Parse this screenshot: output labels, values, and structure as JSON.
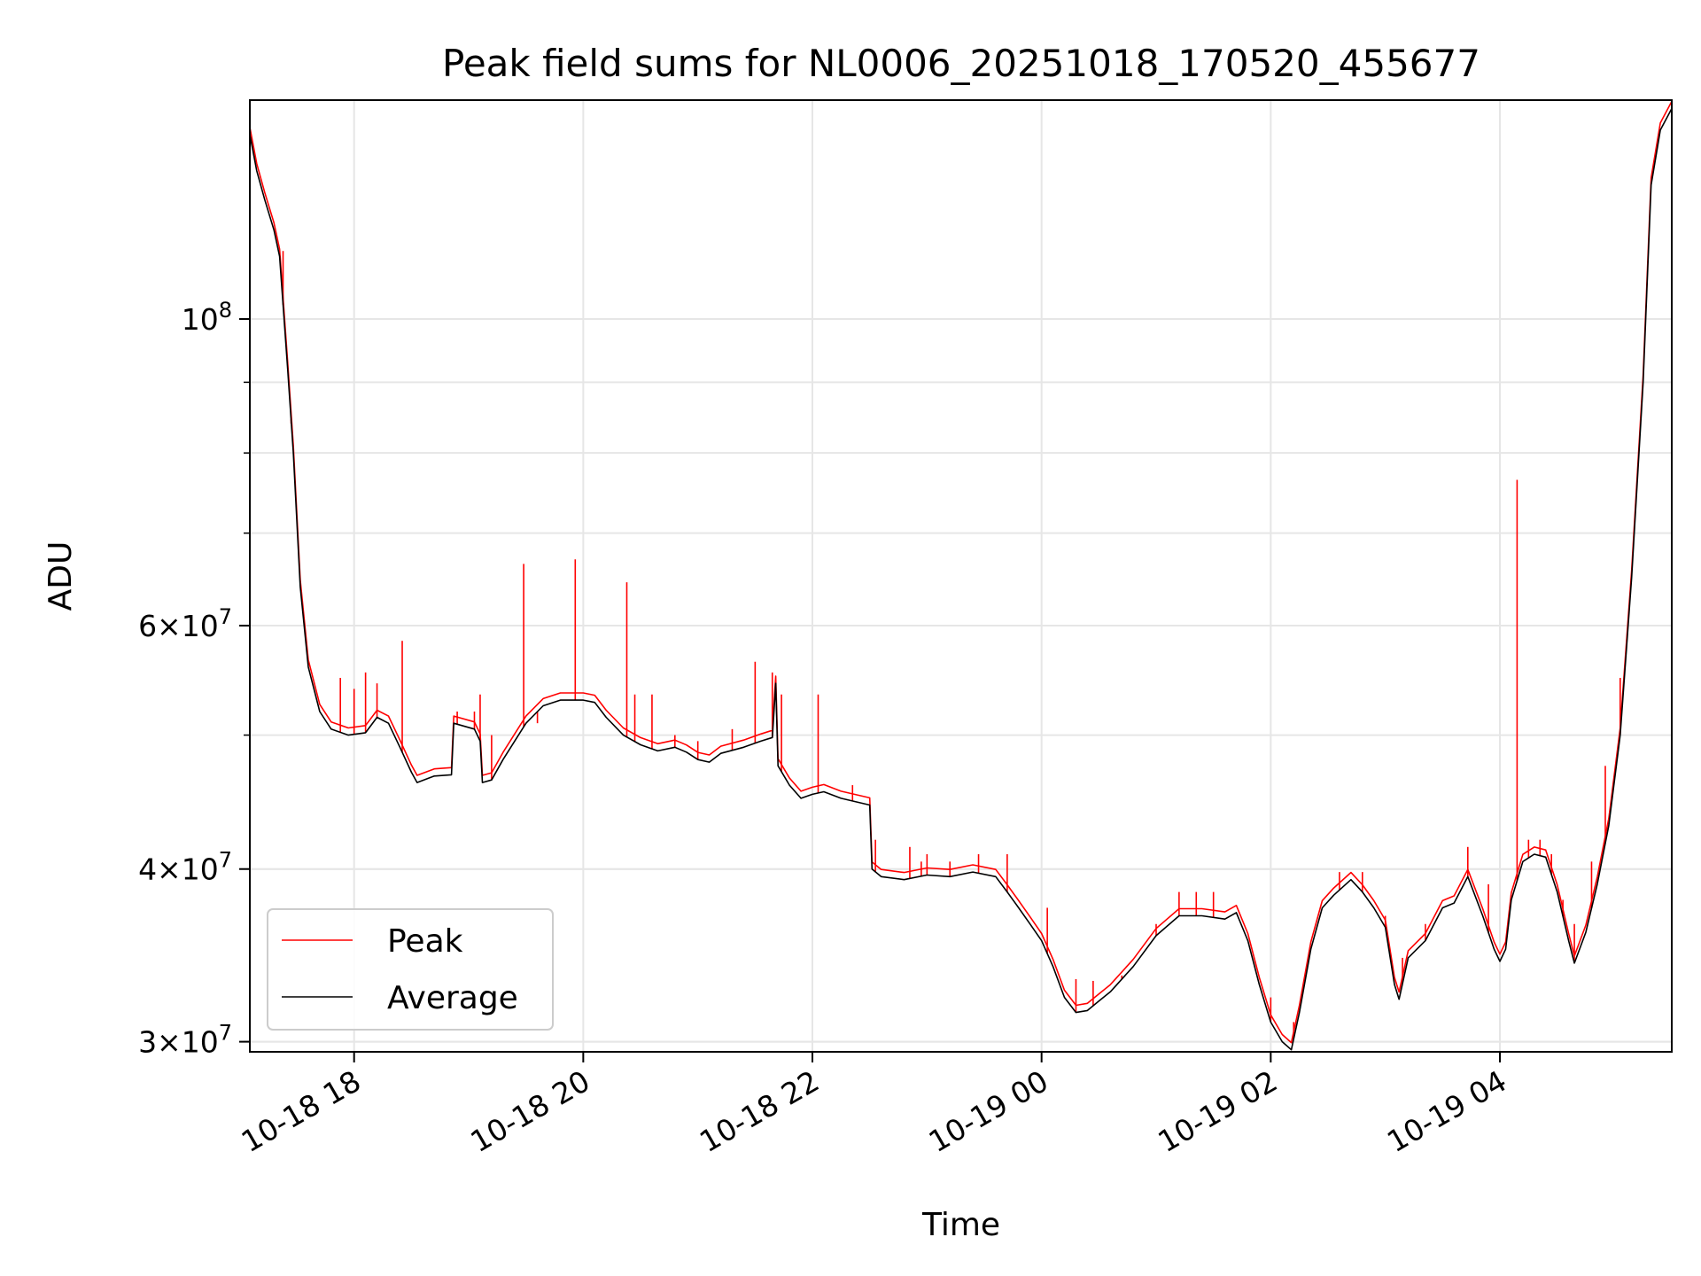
{
  "chart_data": {
    "type": "line",
    "title": "Peak field sums for NL0006_20251018_170520_455677",
    "xlabel": "Time",
    "ylabel": "ADU",
    "yscale": "log",
    "grid": true,
    "legend_position": "lower-left",
    "x_unit": "hours since 2025-10-18 00:00",
    "xlim": [
      17.09,
      29.5
    ],
    "ylim": [
      29500000,
      144000000
    ],
    "x_ticks": [
      {
        "value": 18,
        "label": "10-18 18"
      },
      {
        "value": 20,
        "label": "10-18 20"
      },
      {
        "value": 22,
        "label": "10-18 22"
      },
      {
        "value": 24,
        "label": "10-19 00"
      },
      {
        "value": 26,
        "label": "10-19 02"
      },
      {
        "value": 28,
        "label": "10-19 04"
      }
    ],
    "y_major_ticks": [
      {
        "value": 100000000,
        "base": "10",
        "exp": "8",
        "mantissa": ""
      },
      {
        "value": 60000000,
        "base": "10",
        "exp": "7",
        "mantissa": "6×"
      },
      {
        "value": 40000000,
        "base": "10",
        "exp": "7",
        "mantissa": "4×"
      },
      {
        "value": 30000000,
        "base": "10",
        "exp": "7",
        "mantissa": "3×"
      }
    ],
    "y_minor_ticks": [
      30000000,
      40000000,
      50000000,
      60000000,
      70000000,
      80000000,
      90000000
    ],
    "series": [
      {
        "name": "Average",
        "color": "#000000",
        "points": [
          [
            17.09,
            136000000
          ],
          [
            17.15,
            128000000
          ],
          [
            17.22,
            122000000
          ],
          [
            17.3,
            116000000
          ],
          [
            17.35,
            111000000
          ],
          [
            17.42,
            92000000
          ],
          [
            17.47,
            80000000
          ],
          [
            17.53,
            64000000
          ],
          [
            17.6,
            56000000
          ],
          [
            17.7,
            52000000
          ],
          [
            17.8,
            50500000
          ],
          [
            17.95,
            50000000
          ],
          [
            18.1,
            50200000
          ],
          [
            18.2,
            51500000
          ],
          [
            18.3,
            51000000
          ],
          [
            18.4,
            49000000
          ],
          [
            18.5,
            47000000
          ],
          [
            18.55,
            46200000
          ],
          [
            18.7,
            46700000
          ],
          [
            18.85,
            46800000
          ],
          [
            18.87,
            51000000
          ],
          [
            19.05,
            50500000
          ],
          [
            19.1,
            49500000
          ],
          [
            19.12,
            46200000
          ],
          [
            19.2,
            46400000
          ],
          [
            19.3,
            48000000
          ],
          [
            19.5,
            51000000
          ],
          [
            19.65,
            52500000
          ],
          [
            19.8,
            53000000
          ],
          [
            20.0,
            53000000
          ],
          [
            20.1,
            52800000
          ],
          [
            20.2,
            51500000
          ],
          [
            20.35,
            50000000
          ],
          [
            20.5,
            49200000
          ],
          [
            20.65,
            48700000
          ],
          [
            20.8,
            49000000
          ],
          [
            20.9,
            48600000
          ],
          [
            21.0,
            48000000
          ],
          [
            21.1,
            47800000
          ],
          [
            21.2,
            48500000
          ],
          [
            21.4,
            49000000
          ],
          [
            21.55,
            49500000
          ],
          [
            21.65,
            49800000
          ],
          [
            21.68,
            54500000
          ],
          [
            21.7,
            47500000
          ],
          [
            21.8,
            46000000
          ],
          [
            21.9,
            45000000
          ],
          [
            22.0,
            45300000
          ],
          [
            22.1,
            45500000
          ],
          [
            22.25,
            45000000
          ],
          [
            22.5,
            44500000
          ],
          [
            22.52,
            40000000
          ],
          [
            22.6,
            39500000
          ],
          [
            22.8,
            39300000
          ],
          [
            23.0,
            39600000
          ],
          [
            23.2,
            39500000
          ],
          [
            23.4,
            39800000
          ],
          [
            23.6,
            39500000
          ],
          [
            23.7,
            38500000
          ],
          [
            23.8,
            37500000
          ],
          [
            23.9,
            36500000
          ],
          [
            24.0,
            35500000
          ],
          [
            24.1,
            34000000
          ],
          [
            24.2,
            32300000
          ],
          [
            24.3,
            31500000
          ],
          [
            24.4,
            31600000
          ],
          [
            24.5,
            32100000
          ],
          [
            24.6,
            32600000
          ],
          [
            24.8,
            34000000
          ],
          [
            25.0,
            35800000
          ],
          [
            25.2,
            37000000
          ],
          [
            25.4,
            37000000
          ],
          [
            25.6,
            36800000
          ],
          [
            25.7,
            37200000
          ],
          [
            25.8,
            35500000
          ],
          [
            25.9,
            33000000
          ],
          [
            26.0,
            31000000
          ],
          [
            26.1,
            30000000
          ],
          [
            26.18,
            29600000
          ],
          [
            26.25,
            31500000
          ],
          [
            26.35,
            35000000
          ],
          [
            26.45,
            37500000
          ],
          [
            26.55,
            38300000
          ],
          [
            26.7,
            39300000
          ],
          [
            26.8,
            38500000
          ],
          [
            26.9,
            37500000
          ],
          [
            27.0,
            36300000
          ],
          [
            27.08,
            33000000
          ],
          [
            27.12,
            32200000
          ],
          [
            27.2,
            34500000
          ],
          [
            27.35,
            35500000
          ],
          [
            27.5,
            37500000
          ],
          [
            27.6,
            37800000
          ],
          [
            27.72,
            39500000
          ],
          [
            27.85,
            37000000
          ],
          [
            27.95,
            35000000
          ],
          [
            28.0,
            34300000
          ],
          [
            28.05,
            35000000
          ],
          [
            28.1,
            38000000
          ],
          [
            28.2,
            40500000
          ],
          [
            28.3,
            41000000
          ],
          [
            28.4,
            40800000
          ],
          [
            28.5,
            38500000
          ],
          [
            28.6,
            35500000
          ],
          [
            28.65,
            34200000
          ],
          [
            28.75,
            36000000
          ],
          [
            28.85,
            39000000
          ],
          [
            28.95,
            43000000
          ],
          [
            29.05,
            50000000
          ],
          [
            29.15,
            65000000
          ],
          [
            29.25,
            90000000
          ],
          [
            29.32,
            125000000
          ],
          [
            29.4,
            137000000
          ],
          [
            29.5,
            142000000
          ]
        ]
      },
      {
        "name": "Peak",
        "color": "#ff0000",
        "spikes": [
          [
            17.38,
            112000000
          ],
          [
            17.45,
            84000000
          ],
          [
            17.88,
            55000000
          ],
          [
            18.0,
            54000000
          ],
          [
            18.1,
            55500000
          ],
          [
            18.2,
            54500000
          ],
          [
            18.42,
            58500000
          ],
          [
            18.9,
            52000000
          ],
          [
            19.05,
            52000000
          ],
          [
            19.1,
            53500000
          ],
          [
            19.2,
            50000000
          ],
          [
            19.48,
            66500000
          ],
          [
            19.6,
            51000000
          ],
          [
            19.93,
            67000000
          ],
          [
            20.38,
            64500000
          ],
          [
            20.45,
            53500000
          ],
          [
            20.6,
            53500000
          ],
          [
            20.8,
            50000000
          ],
          [
            21.0,
            49500000
          ],
          [
            21.3,
            50500000
          ],
          [
            21.5,
            56500000
          ],
          [
            21.65,
            55500000
          ],
          [
            21.73,
            53500000
          ],
          [
            22.05,
            53500000
          ],
          [
            22.35,
            46000000
          ],
          [
            22.55,
            42000000
          ],
          [
            22.85,
            41500000
          ],
          [
            22.95,
            40500000
          ],
          [
            23.0,
            41000000
          ],
          [
            23.2,
            40500000
          ],
          [
            23.45,
            41000000
          ],
          [
            23.7,
            41000000
          ],
          [
            24.05,
            37500000
          ],
          [
            24.3,
            33300000
          ],
          [
            24.45,
            33200000
          ],
          [
            24.7,
            33500000
          ],
          [
            25.0,
            36500000
          ],
          [
            25.2,
            38500000
          ],
          [
            25.35,
            38500000
          ],
          [
            25.5,
            38500000
          ],
          [
            26.0,
            32300000
          ],
          [
            26.2,
            31000000
          ],
          [
            26.6,
            39800000
          ],
          [
            26.8,
            39800000
          ],
          [
            27.0,
            37000000
          ],
          [
            27.15,
            34500000
          ],
          [
            27.35,
            36500000
          ],
          [
            27.72,
            41500000
          ],
          [
            27.9,
            39000000
          ],
          [
            28.15,
            76500000
          ],
          [
            28.25,
            42000000
          ],
          [
            28.35,
            42000000
          ],
          [
            28.45,
            41000000
          ],
          [
            28.55,
            38000000
          ],
          [
            28.65,
            36500000
          ],
          [
            28.8,
            40500000
          ],
          [
            28.92,
            47500000
          ],
          [
            29.05,
            55000000
          ]
        ]
      }
    ]
  },
  "legend": {
    "items": [
      {
        "label": "Peak",
        "color": "#ff0000"
      },
      {
        "label": "Average",
        "color": "#000000"
      }
    ]
  }
}
